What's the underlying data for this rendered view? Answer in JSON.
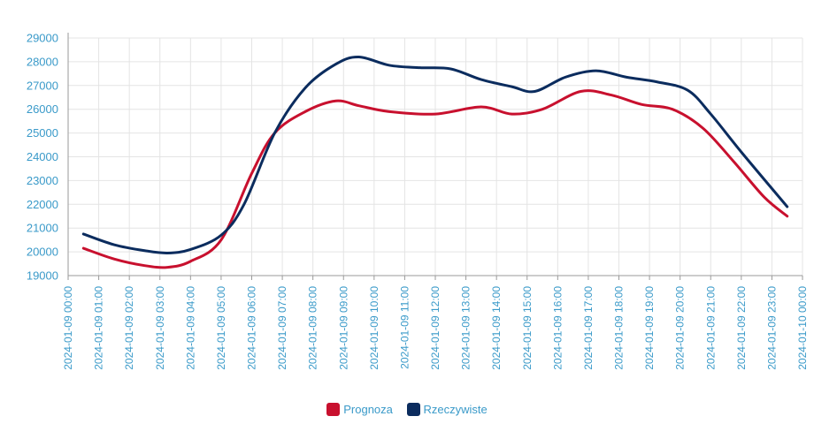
{
  "chart_data": {
    "type": "line",
    "x": [
      "2024-01-09 00:00",
      "2024-01-09 01:00",
      "2024-01-09 02:00",
      "2024-01-09 03:00",
      "2024-01-09 04:00",
      "2024-01-09 05:00",
      "2024-01-09 06:00",
      "2024-01-09 07:00",
      "2024-01-09 08:00",
      "2024-01-09 09:00",
      "2024-01-09 10:00",
      "2024-01-09 11:00",
      "2024-01-09 12:00",
      "2024-01-09 13:00",
      "2024-01-09 14:00",
      "2024-01-09 15:00",
      "2024-01-09 16:00",
      "2024-01-09 17:00",
      "2024-01-09 18:00",
      "2024-01-09 19:00",
      "2024-01-09 20:00",
      "2024-01-09 21:00",
      "2024-01-09 22:00",
      "2024-01-09 23:00",
      "2024-01-10 00:00"
    ],
    "ylim": [
      19000,
      29000
    ],
    "yticks": [
      19000,
      20000,
      21000,
      22000,
      23000,
      24000,
      25000,
      26000,
      27000,
      28000,
      29000
    ],
    "series": [
      {
        "name": "Prognoza",
        "color": "#c8102e",
        "points": [
          {
            "x": "2024-01-09 00:30",
            "y": 20150
          },
          {
            "x": "2024-01-09 01:30",
            "y": 19700
          },
          {
            "x": "2024-01-09 02:30",
            "y": 19420
          },
          {
            "x": "2024-01-09 03:15",
            "y": 19350
          },
          {
            "x": "2024-01-09 04:00",
            "y": 19600
          },
          {
            "x": "2024-01-09 05:00",
            "y": 20500
          },
          {
            "x": "2024-01-09 06:00",
            "y": 23300
          },
          {
            "x": "2024-01-09 06:45",
            "y": 25000
          },
          {
            "x": "2024-01-09 07:45",
            "y": 25900
          },
          {
            "x": "2024-01-09 08:45",
            "y": 26350
          },
          {
            "x": "2024-01-09 09:30",
            "y": 26150
          },
          {
            "x": "2024-01-09 10:30",
            "y": 25900
          },
          {
            "x": "2024-01-09 12:00",
            "y": 25800
          },
          {
            "x": "2024-01-09 13:30",
            "y": 26100
          },
          {
            "x": "2024-01-09 14:30",
            "y": 25800
          },
          {
            "x": "2024-01-09 15:30",
            "y": 26000
          },
          {
            "x": "2024-01-09 16:45",
            "y": 26750
          },
          {
            "x": "2024-01-09 17:45",
            "y": 26600
          },
          {
            "x": "2024-01-09 18:45",
            "y": 26200
          },
          {
            "x": "2024-01-09 19:45",
            "y": 26000
          },
          {
            "x": "2024-01-09 20:45",
            "y": 25200
          },
          {
            "x": "2024-01-09 21:45",
            "y": 23800
          },
          {
            "x": "2024-01-09 22:45",
            "y": 22300
          },
          {
            "x": "2024-01-09 23:30",
            "y": 21500
          }
        ]
      },
      {
        "name": "Rzeczywiste",
        "color": "#0b2c5e",
        "points": [
          {
            "x": "2024-01-09 00:30",
            "y": 20750
          },
          {
            "x": "2024-01-09 01:30",
            "y": 20300
          },
          {
            "x": "2024-01-09 02:30",
            "y": 20050
          },
          {
            "x": "2024-01-09 03:15",
            "y": 19950
          },
          {
            "x": "2024-01-09 04:00",
            "y": 20100
          },
          {
            "x": "2024-01-09 05:00",
            "y": 20700
          },
          {
            "x": "2024-01-09 05:45",
            "y": 22000
          },
          {
            "x": "2024-01-09 06:45",
            "y": 25000
          },
          {
            "x": "2024-01-09 07:45",
            "y": 26900
          },
          {
            "x": "2024-01-09 08:45",
            "y": 27900
          },
          {
            "x": "2024-01-09 09:30",
            "y": 28200
          },
          {
            "x": "2024-01-09 10:30",
            "y": 27850
          },
          {
            "x": "2024-01-09 11:30",
            "y": 27750
          },
          {
            "x": "2024-01-09 12:30",
            "y": 27700
          },
          {
            "x": "2024-01-09 13:30",
            "y": 27250
          },
          {
            "x": "2024-01-09 14:30",
            "y": 26950
          },
          {
            "x": "2024-01-09 15:15",
            "y": 26750
          },
          {
            "x": "2024-01-09 16:15",
            "y": 27350
          },
          {
            "x": "2024-01-09 17:15",
            "y": 27620
          },
          {
            "x": "2024-01-09 18:15",
            "y": 27350
          },
          {
            "x": "2024-01-09 19:15",
            "y": 27150
          },
          {
            "x": "2024-01-09 20:15",
            "y": 26800
          },
          {
            "x": "2024-01-09 21:00",
            "y": 25800
          },
          {
            "x": "2024-01-09 22:00",
            "y": 24200
          },
          {
            "x": "2024-01-09 23:30",
            "y": 21900
          }
        ]
      }
    ],
    "grid": true,
    "legend": "bottom-center"
  }
}
